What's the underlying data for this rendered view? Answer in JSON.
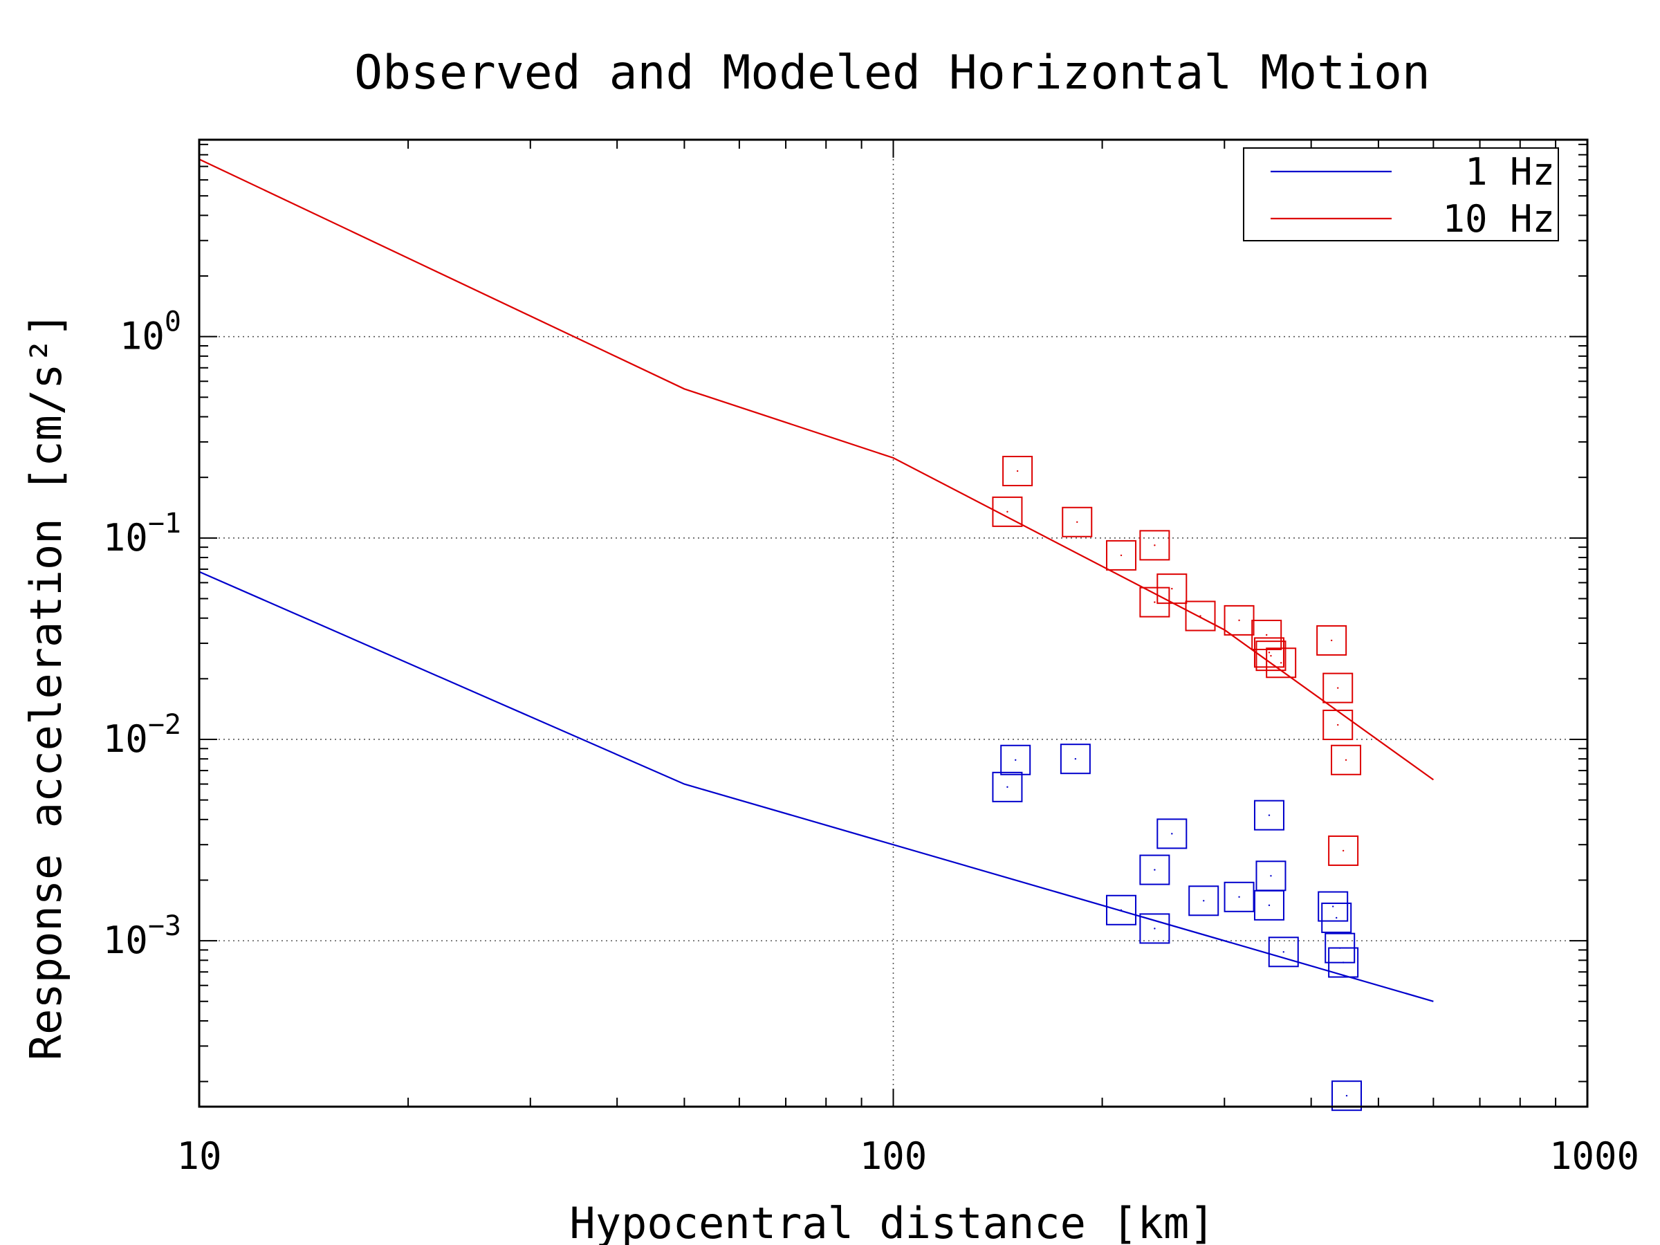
{
  "chart_data": {
    "type": "scatter",
    "title": "Observed and Modeled Horizontal Motion",
    "xlabel": "Hypocentral distance [km]",
    "ylabel": "Response acceleration [cm/s²]",
    "x_scale": "log",
    "y_scale": "log",
    "xlim": [
      10,
      1000
    ],
    "ylim": [
      0.00015,
      9.5
    ],
    "x_ticks": [
      "10",
      "100",
      "1000"
    ],
    "y_ticks": [
      {
        "base": "10",
        "exp": "0",
        "value": 1
      },
      {
        "base": "10",
        "exp": "−1",
        "value": 0.1
      },
      {
        "base": "10",
        "exp": "−2",
        "value": 0.01
      },
      {
        "base": "10",
        "exp": "−3",
        "value": 0.001
      }
    ],
    "grid": true,
    "legend_position": "top-right",
    "legend": [
      {
        "label": "1 Hz",
        "color": "#0000cc"
      },
      {
        "label": "10 Hz",
        "color": "#dd0000"
      }
    ],
    "series": [
      {
        "name": "1 Hz",
        "color": "#0000cc",
        "model": {
          "x": [
            10,
            50,
            600
          ],
          "y": [
            0.068,
            0.006,
            0.0005
          ]
        },
        "observed": {
          "x": [
            146,
            150,
            183,
            213,
            238,
            238,
            252,
            280,
            315,
            348,
            348,
            350,
            365,
            430,
            435,
            440,
            445,
            450
          ],
          "y": [
            0.0058,
            0.0079,
            0.008,
            0.00142,
            0.00225,
            0.00115,
            0.0034,
            0.00158,
            0.00165,
            0.0042,
            0.0015,
            0.0021,
            0.00088,
            0.00148,
            0.0013,
            0.00092,
            0.00078,
            0.00017
          ]
        }
      },
      {
        "name": "10 Hz",
        "color": "#dd0000",
        "model": {
          "x": [
            10,
            50,
            100,
            300,
            600
          ],
          "y": [
            7.6,
            0.55,
            0.25,
            0.035,
            0.0063
          ]
        },
        "observed": {
          "x": [
            146,
            151,
            184,
            213,
            238,
            238,
            252,
            277,
            315,
            345,
            348,
            350,
            362,
            428,
            437,
            437,
            449,
            445
          ],
          "y": [
            0.135,
            0.215,
            0.12,
            0.082,
            0.092,
            0.048,
            0.056,
            0.041,
            0.039,
            0.033,
            0.027,
            0.026,
            0.024,
            0.031,
            0.018,
            0.0118,
            0.0079,
            0.0028
          ]
        }
      }
    ]
  }
}
